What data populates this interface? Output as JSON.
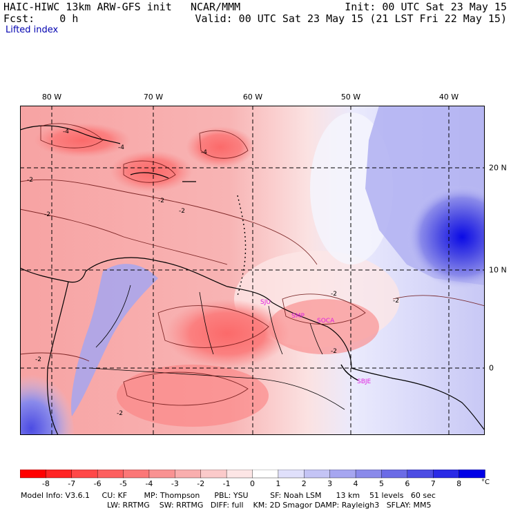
{
  "header": {
    "model": "HAIC-HIWC 13km ARW-GFS init",
    "org": "NCAR/MMM",
    "fcst": "Fcst:    0 h",
    "init": "Init: 00 UTC Sat 23 May 15",
    "valid": "Valid: 00 UTC Sat 23 May 15 (21 LST Fri 22 May 15)",
    "field": "Lifted index"
  },
  "map": {
    "longitude_labels": [
      "80 W",
      "70 W",
      "60 W",
      "50 W",
      "40 W"
    ],
    "latitude_labels": [
      "20 N",
      "10 N",
      "0"
    ],
    "contour_label": "-2",
    "contour_label_strong": "-4",
    "stations": [
      "SJU",
      "SMP",
      "SOCA",
      "SBJE"
    ],
    "station_color": "#e020e0"
  },
  "colorbar": {
    "ticks": [
      "-8",
      "-7",
      "-6",
      "-5",
      "-4",
      "-3",
      "-2",
      "-1",
      "0",
      "1",
      "2",
      "3",
      "4",
      "5",
      "6",
      "7",
      "8"
    ],
    "unit": "°C",
    "colors": [
      "#ff0000",
      "#ff2424",
      "#ff4848",
      "#fd5f5f",
      "#fb7777",
      "#f99292",
      "#f9aeae",
      "#fbcaca",
      "#fde6e6",
      "#ffffff",
      "#e0e0fb",
      "#c4c4f5",
      "#a6a6f0",
      "#8a8aea",
      "#6b6be6",
      "#4c4ce3",
      "#2a2ae6",
      "#0000e6"
    ]
  },
  "footer": {
    "line1": "Model Info: V3.6.1     CU: KF       MP: Thompson      PBL: YSU         SF: Noah LSM      13 km    51 levels   60 sec",
    "line2": "LW: RRTMG    SW: RRTMG   DIFF: full    KM: 2D Smagor DAMP: Rayleigh3   SFLAY: MM5"
  }
}
